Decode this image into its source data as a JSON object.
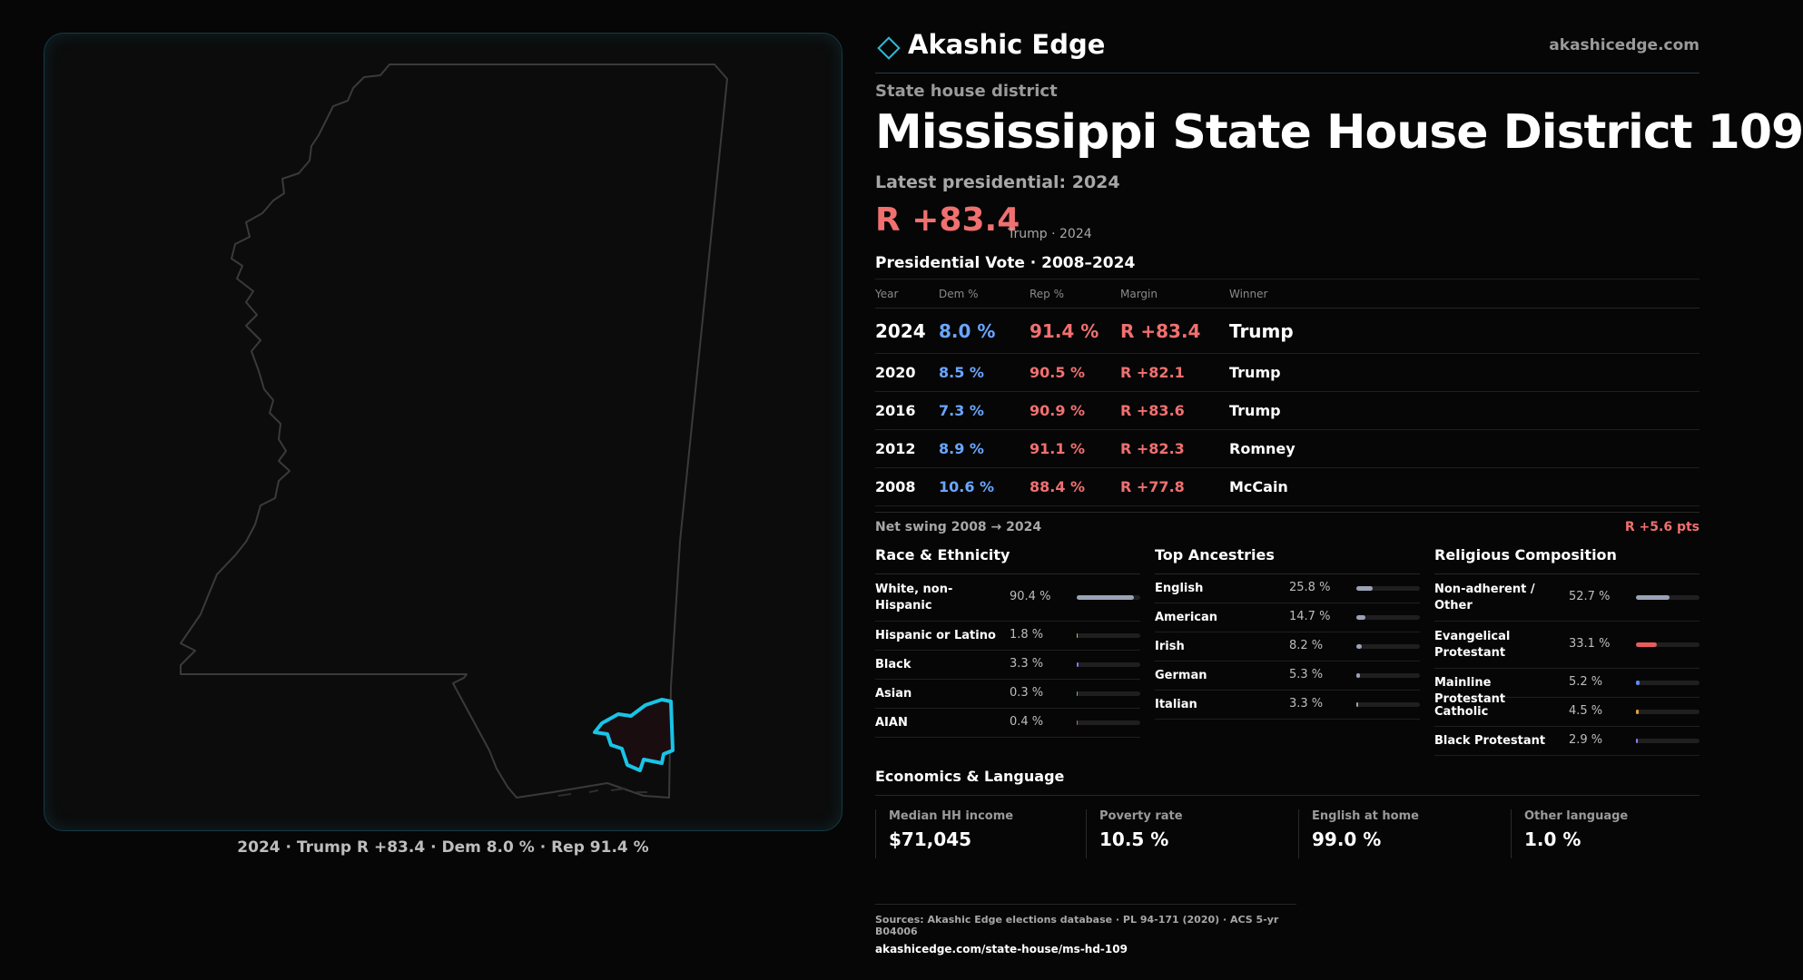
{
  "brand": {
    "name": "Akashic Edge",
    "url": "akashicedge.com"
  },
  "header": {
    "subtype": "State house district",
    "title": "Mississippi State House District 109",
    "latest_label": "Latest presidential: 2024",
    "margin": "R +83.4",
    "margin_sub": "Trump · 2024"
  },
  "map": {
    "caption": {
      "year": "2024",
      "winner": "Trump",
      "margin": "R +83.4",
      "dem": "Dem 8.0 %",
      "rep": "Rep 91.4 %"
    },
    "colors": {
      "outline": "#3a3a3a",
      "district": "#19c4e6"
    }
  },
  "votes": {
    "title": "Presidential Vote · 2008–2024",
    "headers": {
      "year": "Year",
      "dem": "Dem %",
      "rep": "Rep %",
      "margin": "Margin",
      "winner": "Winner"
    },
    "rows": [
      {
        "year": "2024",
        "dem": "8.0 %",
        "rep": "91.4 %",
        "margin": "R +83.4",
        "winner": "Trump"
      },
      {
        "year": "2020",
        "dem": "8.5 %",
        "rep": "90.5 %",
        "margin": "R +82.1",
        "winner": "Trump"
      },
      {
        "year": "2016",
        "dem": "7.3 %",
        "rep": "90.9 %",
        "margin": "R +83.6",
        "winner": "Trump"
      },
      {
        "year": "2012",
        "dem": "8.9 %",
        "rep": "91.1 %",
        "margin": "R +82.3",
        "winner": "Romney"
      },
      {
        "year": "2008",
        "dem": "10.6 %",
        "rep": "88.4 %",
        "margin": "R +77.8",
        "winner": "McCain"
      }
    ],
    "swing_label": "Net swing 2008 → 2024",
    "swing_value": "R +5.6 pts"
  },
  "demographics": {
    "race": {
      "title": "Race & Ethnicity",
      "items": [
        {
          "name": "White, non-Hispanic",
          "value": "90.4 %",
          "pct": 90.4,
          "color": "#9aa3b5"
        },
        {
          "name": "Hispanic or Latino",
          "value": "1.8 %",
          "pct": 1.8,
          "color": "#e0b04a"
        },
        {
          "name": "Black",
          "value": "3.3 %",
          "pct": 3.3,
          "color": "#7d7df0"
        },
        {
          "name": "Asian",
          "value": "0.3 %",
          "pct": 0.3,
          "color": "#4ac0a0"
        },
        {
          "name": "AIAN",
          "value": "0.4 %",
          "pct": 0.4,
          "color": "#c07050"
        }
      ]
    },
    "ancestry": {
      "title": "Top Ancestries",
      "items": [
        {
          "name": "English",
          "value": "25.8 %",
          "pct": 25.8,
          "color": "#9aa3b5"
        },
        {
          "name": "American",
          "value": "14.7 %",
          "pct": 14.7,
          "color": "#9aa3b5"
        },
        {
          "name": "Irish",
          "value": "8.2 %",
          "pct": 8.2,
          "color": "#9aa3b5"
        },
        {
          "name": "German",
          "value": "5.3 %",
          "pct": 5.3,
          "color": "#9aa3b5"
        },
        {
          "name": "Italian",
          "value": "3.3 %",
          "pct": 3.3,
          "color": "#9aa3b5"
        }
      ]
    },
    "religion": {
      "title": "Religious Composition",
      "items": [
        {
          "name": "Non-adherent / Other",
          "value": "52.7 %",
          "pct": 52.7,
          "color": "#9aa3b5"
        },
        {
          "name": "Evangelical Protestant",
          "value": "33.1 %",
          "pct": 33.1,
          "color": "#e85c5c"
        },
        {
          "name": "Mainline Protestant",
          "value": "5.2 %",
          "pct": 5.2,
          "color": "#5a8cf0"
        },
        {
          "name": "Catholic",
          "value": "4.5 %",
          "pct": 4.5,
          "color": "#e0a040"
        },
        {
          "name": "Black Protestant",
          "value": "2.9 %",
          "pct": 2.9,
          "color": "#8c7df0"
        }
      ]
    }
  },
  "economics": {
    "title": "Economics & Language",
    "items": [
      {
        "label": "Median HH income",
        "value": "$71,045"
      },
      {
        "label": "Poverty rate",
        "value": "10.5 %"
      },
      {
        "label": "English at home",
        "value": "99.0 %"
      },
      {
        "label": "Other language",
        "value": "1.0 %"
      }
    ]
  },
  "sources": {
    "text": "Sources: Akashic Edge elections database · PL 94-171 (2020) · ACS 5-yr B04006",
    "url": "akashicedge.com/state-house/ms-hd-109"
  }
}
